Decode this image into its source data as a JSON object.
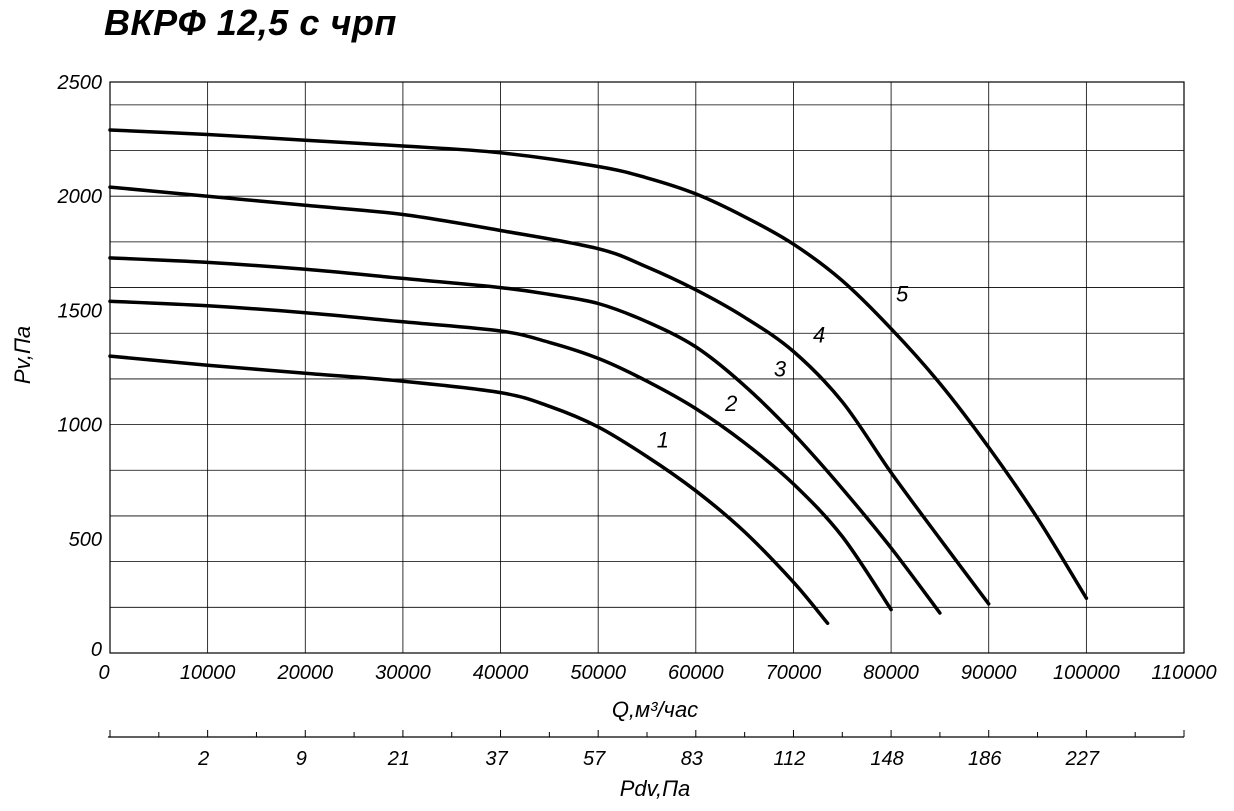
{
  "chart_data": {
    "type": "line",
    "title": "ВКРФ 12,5 с чрп",
    "xlabel": "Q,м³/час",
    "ylabel": "Pv,Па",
    "xlim": [
      0,
      110000
    ],
    "ylim": [
      0,
      2500
    ],
    "x_ticks": [
      "0",
      "10000",
      "20000",
      "30000",
      "40000",
      "50000",
      "60000",
      "70000",
      "80000",
      "90000",
      "100000",
      "110000"
    ],
    "y_ticks": [
      "0",
      "500",
      "1000",
      "1500",
      "2000",
      "2500"
    ],
    "grid": true,
    "secondary_axis": {
      "label": "Pdv,Па",
      "ticks": [
        {
          "q": 10000,
          "label": "2"
        },
        {
          "q": 20000,
          "label": "9"
        },
        {
          "q": 30000,
          "label": "21"
        },
        {
          "q": 40000,
          "label": "37"
        },
        {
          "q": 50000,
          "label": "57"
        },
        {
          "q": 60000,
          "label": "83"
        },
        {
          "q": 70000,
          "label": "112"
        },
        {
          "q": 80000,
          "label": "148"
        },
        {
          "q": 90000,
          "label": "186"
        },
        {
          "q": 100000,
          "label": "227"
        }
      ]
    },
    "series": [
      {
        "name": "1",
        "label_at": [
          56000,
          900
        ],
        "x": [
          0,
          10000,
          20000,
          30000,
          40000,
          45000,
          50000,
          55000,
          60000,
          65000,
          70000,
          73500
        ],
        "y": [
          1300,
          1260,
          1225,
          1190,
          1140,
          1080,
          990,
          860,
          710,
          530,
          310,
          130
        ]
      },
      {
        "name": "2",
        "label_at": [
          63000,
          1060
        ],
        "x": [
          0,
          10000,
          20000,
          30000,
          40000,
          45000,
          50000,
          55000,
          60000,
          65000,
          70000,
          75000,
          80000
        ],
        "y": [
          1540,
          1520,
          1490,
          1450,
          1410,
          1360,
          1290,
          1190,
          1070,
          920,
          740,
          510,
          190
        ]
      },
      {
        "name": "3",
        "label_at": [
          68000,
          1210
        ],
        "x": [
          0,
          10000,
          20000,
          30000,
          40000,
          45000,
          50000,
          55000,
          60000,
          65000,
          70000,
          75000,
          80000,
          85000
        ],
        "y": [
          1730,
          1710,
          1680,
          1640,
          1600,
          1570,
          1530,
          1450,
          1340,
          1170,
          960,
          720,
          460,
          175
        ]
      },
      {
        "name": "4",
        "label_at": [
          72000,
          1360
        ],
        "x": [
          0,
          10000,
          20000,
          30000,
          40000,
          50000,
          55000,
          60000,
          65000,
          70000,
          75000,
          80000,
          85000,
          90000
        ],
        "y": [
          2040,
          2000,
          1960,
          1920,
          1850,
          1770,
          1690,
          1590,
          1470,
          1320,
          1100,
          790,
          500,
          215
        ]
      },
      {
        "name": "5",
        "label_at": [
          80500,
          1540
        ],
        "x": [
          0,
          10000,
          20000,
          30000,
          40000,
          50000,
          55000,
          60000,
          65000,
          70000,
          75000,
          80000,
          85000,
          90000,
          95000,
          100000
        ],
        "y": [
          2290,
          2270,
          2245,
          2220,
          2190,
          2130,
          2080,
          2010,
          1910,
          1790,
          1630,
          1420,
          1180,
          900,
          590,
          240
        ]
      }
    ]
  }
}
